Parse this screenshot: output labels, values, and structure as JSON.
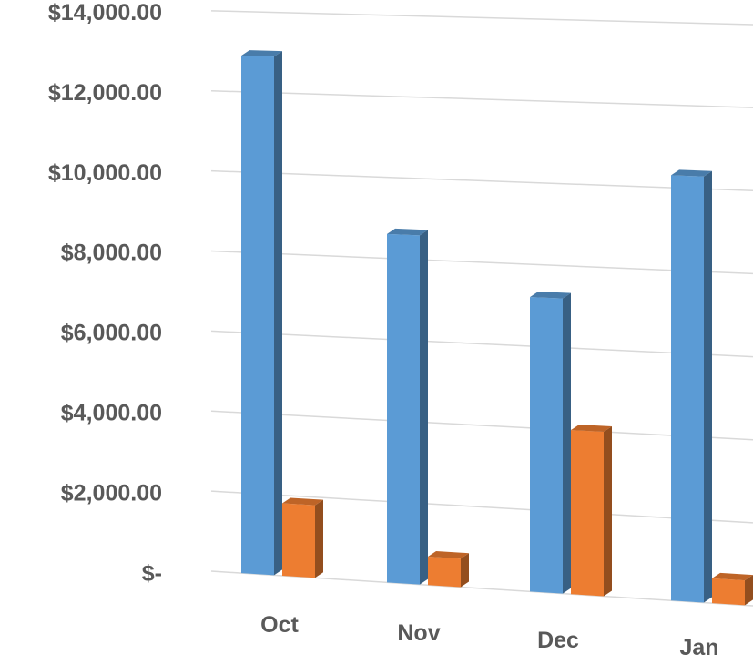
{
  "chart_data": {
    "type": "bar",
    "style": "3d-perspective-clustered-column",
    "categories": [
      "Oct",
      "Nov",
      "Dec",
      "Jan"
    ],
    "series": [
      {
        "values": [
          12900,
          8600,
          7200,
          10300
        ],
        "color": "#5B9BD5"
      },
      {
        "values": [
          1800,
          700,
          4000,
          600
        ],
        "color": "#ED7D31"
      }
    ],
    "y_ticks": [
      0,
      2000,
      4000,
      6000,
      8000,
      10000,
      12000,
      14000
    ],
    "y_tick_labels": [
      "$-",
      "$2,000.00",
      "$4,000.00",
      "$6,000.00",
      "$8,000.00",
      "$10,000.00",
      "$12,000.00",
      "$14,000.00"
    ],
    "ylim": [
      0,
      14000
    ],
    "title": "",
    "xlabel": "",
    "ylabel": "",
    "grid": true,
    "legend": "none"
  }
}
